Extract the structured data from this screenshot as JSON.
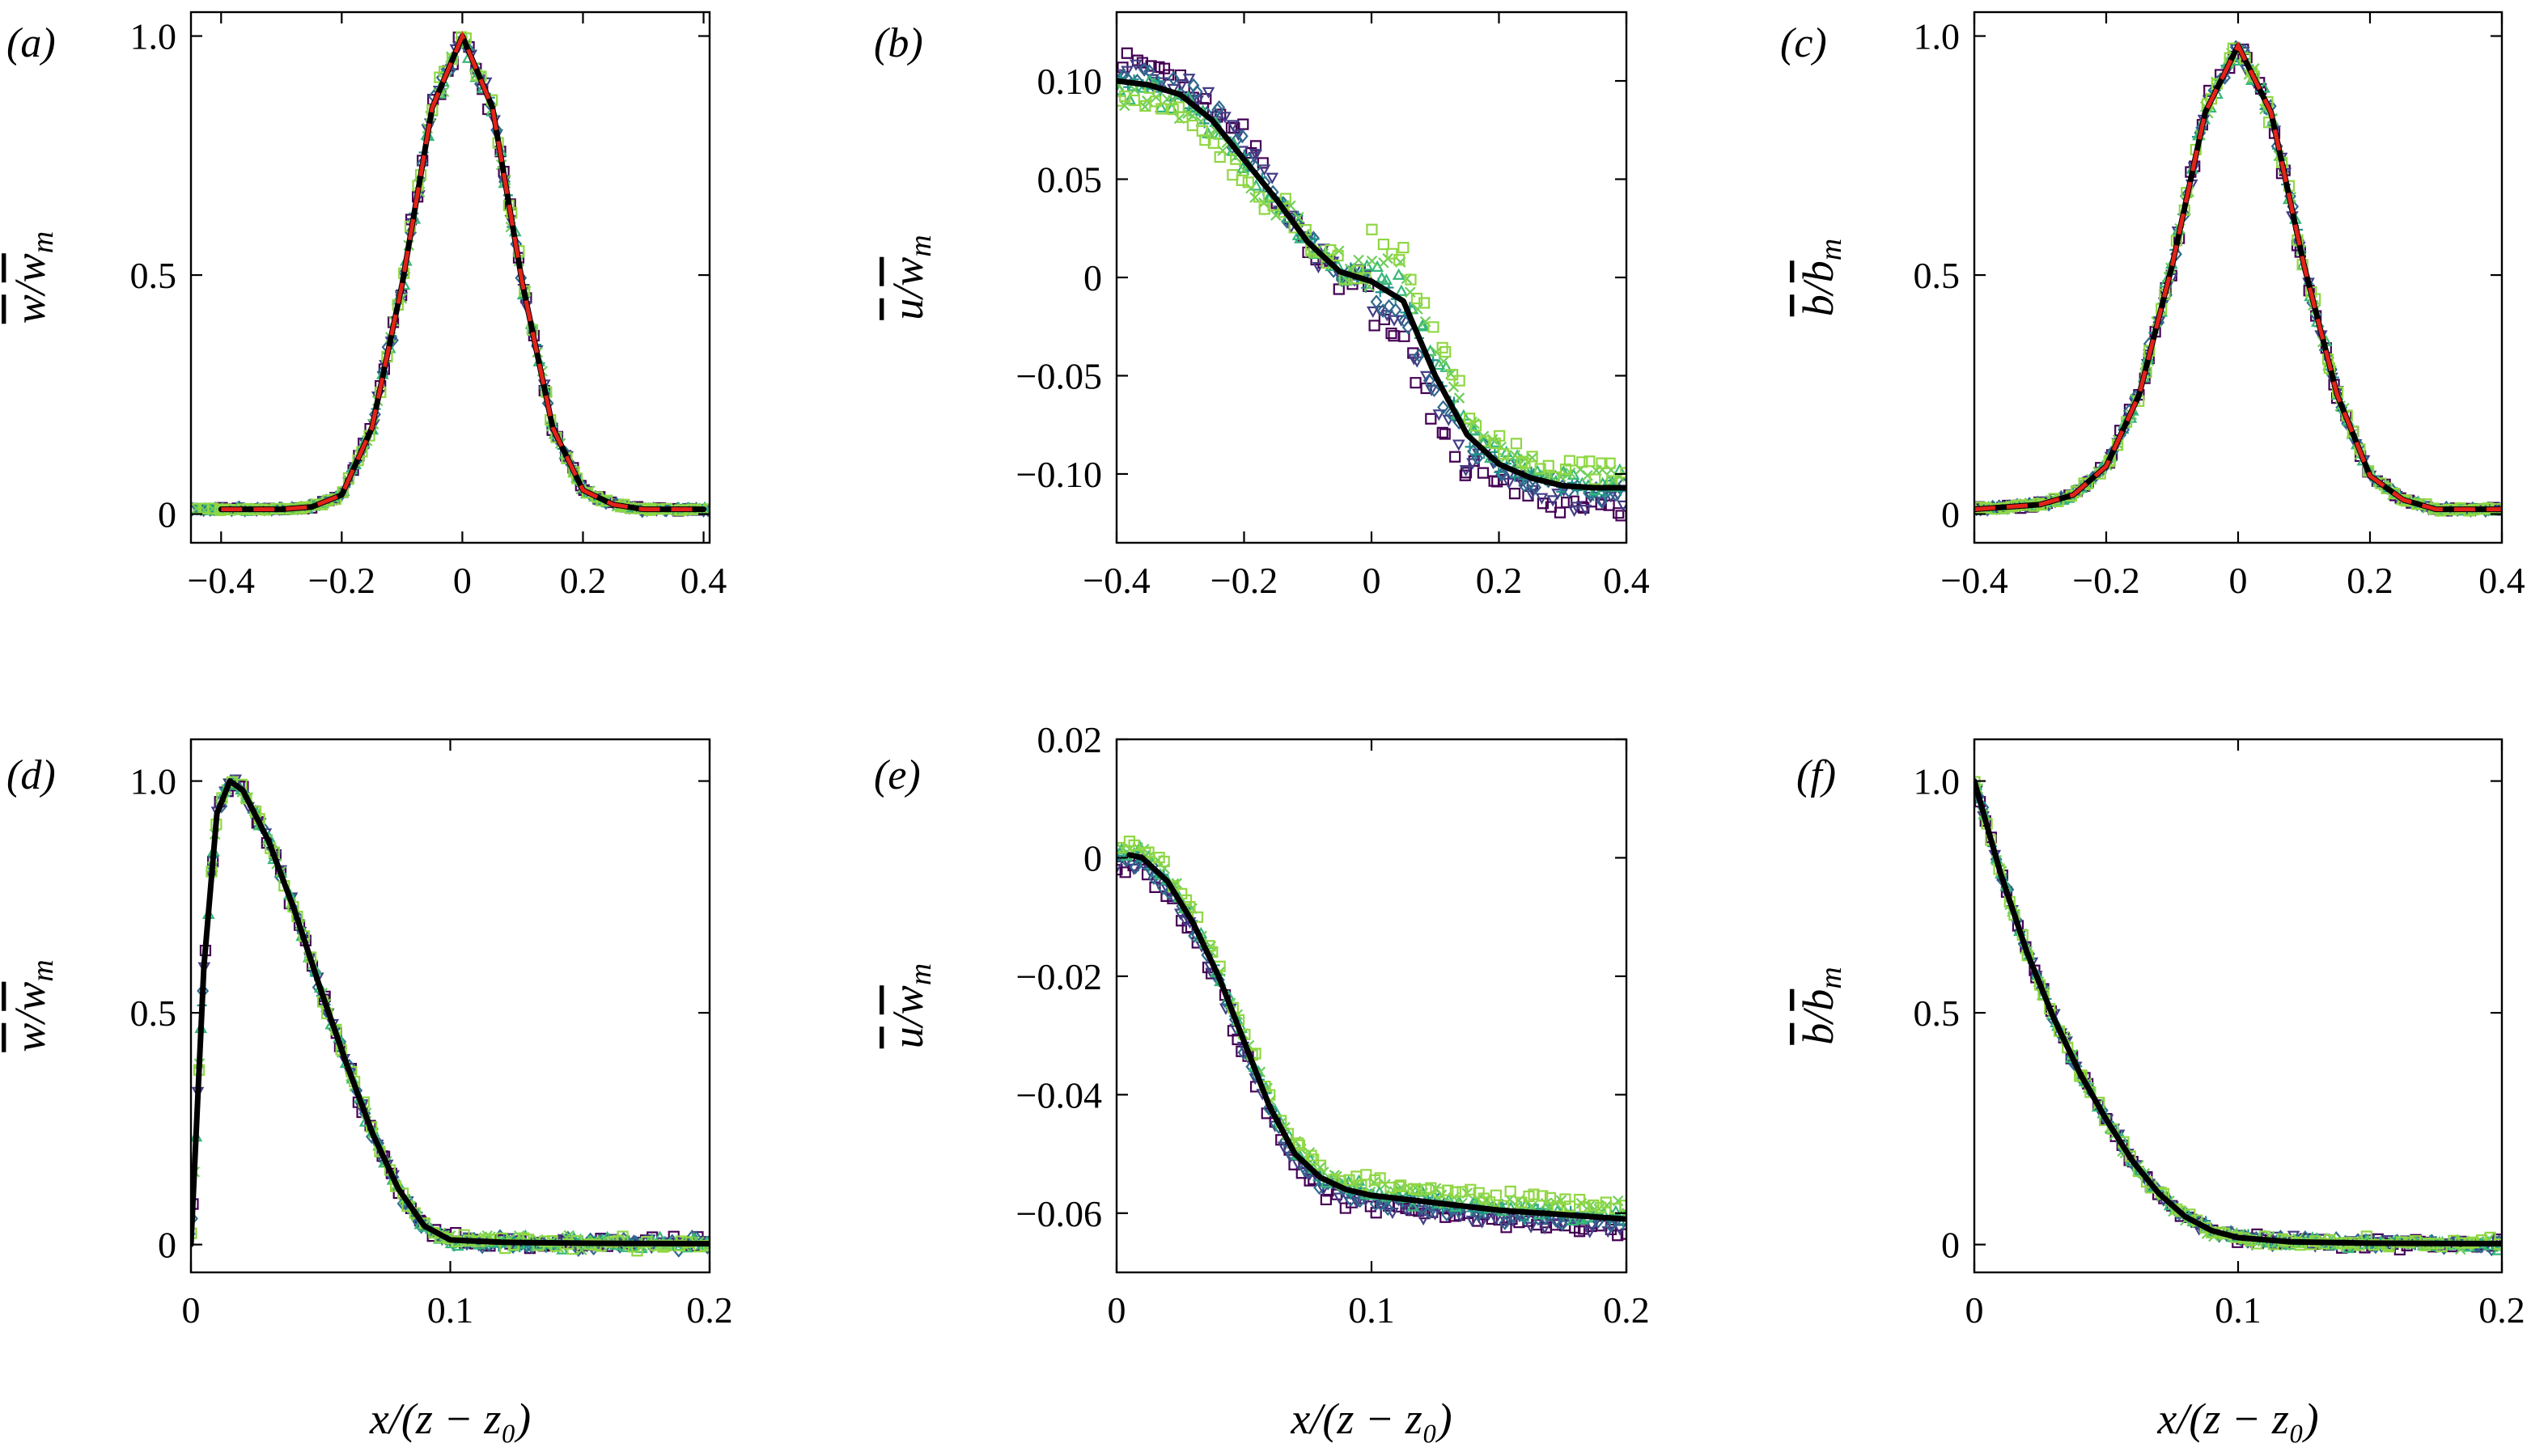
{
  "colors": {
    "series": [
      "#440154",
      "#433e85",
      "#31688e",
      "#21918c",
      "#35b779",
      "#6ece58",
      "#90d743"
    ],
    "fit_line": "#000000",
    "reference_line": "#e2231a"
  },
  "chart_data": [
    {
      "id": "a",
      "panel_label": "(a)",
      "type": "scatter",
      "ylabel_html": "w̅/w̅ₘ",
      "ylabel_num": "w",
      "ylabel_den": "w",
      "ylabel_den_sub": "m",
      "xlim": [
        -0.45,
        0.41
      ],
      "ylim": [
        -0.06,
        1.05
      ],
      "xticks": [
        -0.4,
        -0.2,
        0,
        0.2,
        0.4
      ],
      "xtick_labels": [
        "−0.4",
        "−0.2",
        "0",
        "0.2",
        "0.4"
      ],
      "yticks": [
        0,
        0.5,
        1.0
      ],
      "ytick_labels": [
        "0",
        "0.5",
        "1.0"
      ],
      "profile": "gauss_w",
      "spread": 0.05,
      "has_reference": true,
      "fit_x": [
        -0.4,
        -0.3,
        -0.25,
        -0.2,
        -0.15,
        -0.1,
        -0.05,
        0,
        0.05,
        0.1,
        0.15,
        0.2,
        0.25,
        0.3,
        0.4
      ],
      "fit_y": [
        0.01,
        0.01,
        0.015,
        0.04,
        0.18,
        0.48,
        0.85,
        1.0,
        0.85,
        0.48,
        0.18,
        0.05,
        0.02,
        0.01,
        0.01
      ]
    },
    {
      "id": "b",
      "panel_label": "(b)",
      "type": "scatter",
      "ylabel_num": "u",
      "ylabel_den": "w",
      "ylabel_den_sub": "m",
      "xlim": [
        -0.4,
        0.4
      ],
      "ylim": [
        -0.135,
        0.135
      ],
      "xticks": [
        -0.4,
        -0.2,
        0,
        0.2,
        0.4
      ],
      "xtick_labels": [
        "−0.4",
        "−0.2",
        "0",
        "0.2",
        "0.4"
      ],
      "yticks": [
        -0.1,
        -0.05,
        0,
        0.05,
        0.1
      ],
      "ytick_labels": [
        "−0.10",
        "−0.05",
        "0",
        "0.05",
        "0.10"
      ],
      "profile": "u_cross",
      "spread": 0.015,
      "has_reference": false,
      "fit_x": [
        -0.4,
        -0.35,
        -0.3,
        -0.25,
        -0.2,
        -0.15,
        -0.1,
        -0.05,
        0,
        0.05,
        0.1,
        0.15,
        0.2,
        0.25,
        0.3,
        0.35,
        0.4
      ],
      "fit_y": [
        0.1,
        0.098,
        0.093,
        0.08,
        0.06,
        0.04,
        0.018,
        0.003,
        -0.002,
        -0.012,
        -0.05,
        -0.08,
        -0.095,
        -0.102,
        -0.106,
        -0.107,
        -0.107
      ]
    },
    {
      "id": "c",
      "panel_label": "(c)",
      "type": "scatter",
      "ylabel_num": "b",
      "ylabel_den": "b",
      "ylabel_den_sub": "m",
      "xlim": [
        -0.4,
        0.4
      ],
      "ylim": [
        -0.06,
        1.05
      ],
      "xticks": [
        -0.4,
        -0.2,
        0,
        0.2,
        0.4
      ],
      "xtick_labels": [
        "−0.4",
        "−0.2",
        "0",
        "0.2",
        "0.4"
      ],
      "yticks": [
        0,
        0.5,
        1.0
      ],
      "ytick_labels": [
        "0",
        "0.5",
        "1.0"
      ],
      "profile": "gauss_b",
      "spread": 0.06,
      "has_reference": true,
      "fit_x": [
        -0.4,
        -0.3,
        -0.25,
        -0.2,
        -0.15,
        -0.1,
        -0.05,
        0,
        0.05,
        0.1,
        0.15,
        0.2,
        0.25,
        0.3,
        0.4
      ],
      "fit_y": [
        0.01,
        0.02,
        0.04,
        0.1,
        0.25,
        0.52,
        0.84,
        0.98,
        0.84,
        0.52,
        0.25,
        0.08,
        0.03,
        0.01,
        0.01
      ]
    },
    {
      "id": "d",
      "panel_label": "(d)",
      "type": "scatter",
      "ylabel_num": "w",
      "ylabel_den": "w",
      "ylabel_den_sub": "m",
      "xlim": [
        0,
        0.2
      ],
      "ylim": [
        -0.06,
        1.09
      ],
      "xticks": [
        0,
        0.1,
        0.2
      ],
      "xtick_labels": [
        "0",
        "0.1",
        "0.2"
      ],
      "yticks": [
        0,
        0.5,
        1.0
      ],
      "ytick_labels": [
        "0",
        "0.5",
        "1.0"
      ],
      "xlabel": "x/(z − z₀)",
      "profile": "wall_w",
      "spread": 0.03,
      "has_reference": false,
      "fit_x": [
        0,
        0.005,
        0.01,
        0.015,
        0.02,
        0.03,
        0.04,
        0.05,
        0.06,
        0.07,
        0.08,
        0.09,
        0.1,
        0.12,
        0.15,
        0.2
      ],
      "fit_y": [
        0,
        0.6,
        0.93,
        1.0,
        0.98,
        0.87,
        0.72,
        0.55,
        0.39,
        0.24,
        0.12,
        0.04,
        0.01,
        0.005,
        0.003,
        0.002
      ]
    },
    {
      "id": "e",
      "panel_label": "(e)",
      "type": "scatter",
      "ylabel_num": "u",
      "ylabel_den": "w",
      "ylabel_den_sub": "m",
      "xlim": [
        0,
        0.2
      ],
      "ylim": [
        -0.07,
        0.02
      ],
      "xticks": [
        0,
        0.1,
        0.2
      ],
      "xtick_labels": [
        "0",
        "0.1",
        "0.2"
      ],
      "yticks": [
        -0.06,
        -0.04,
        -0.02,
        0,
        0.02
      ],
      "ytick_labels": [
        "−0.06",
        "−0.04",
        "−0.02",
        "0",
        "0.02"
      ],
      "xlabel": "x/(z − z₀)",
      "profile": "wall_u",
      "spread": 0.003,
      "has_reference": false,
      "fit_x": [
        0.005,
        0.01,
        0.02,
        0.03,
        0.04,
        0.05,
        0.06,
        0.07,
        0.08,
        0.09,
        0.1,
        0.12,
        0.15,
        0.2
      ],
      "fit_y": [
        0.0005,
        0.0,
        -0.004,
        -0.011,
        -0.02,
        -0.031,
        -0.042,
        -0.05,
        -0.054,
        -0.056,
        -0.057,
        -0.058,
        -0.0595,
        -0.061
      ]
    },
    {
      "id": "f",
      "panel_label": "(f)",
      "type": "scatter",
      "ylabel_num": "b",
      "ylabel_den": "b",
      "ylabel_den_sub": "m",
      "xlim": [
        0,
        0.2
      ],
      "ylim": [
        -0.06,
        1.09
      ],
      "xticks": [
        0,
        0.1,
        0.2
      ],
      "xtick_labels": [
        "0",
        "0.1",
        "0.2"
      ],
      "yticks": [
        0,
        0.5,
        1.0
      ],
      "ytick_labels": [
        "0",
        "0.5",
        "1.0"
      ],
      "xlabel": "x/(z − z₀)",
      "profile": "wall_b",
      "spread": 0.025,
      "has_reference": false,
      "fit_x": [
        0,
        0.01,
        0.02,
        0.03,
        0.04,
        0.05,
        0.06,
        0.07,
        0.08,
        0.09,
        0.1,
        0.12,
        0.15,
        0.2
      ],
      "fit_y": [
        1.0,
        0.8,
        0.63,
        0.49,
        0.37,
        0.27,
        0.18,
        0.11,
        0.06,
        0.03,
        0.015,
        0.006,
        0.003,
        0.002
      ]
    }
  ]
}
